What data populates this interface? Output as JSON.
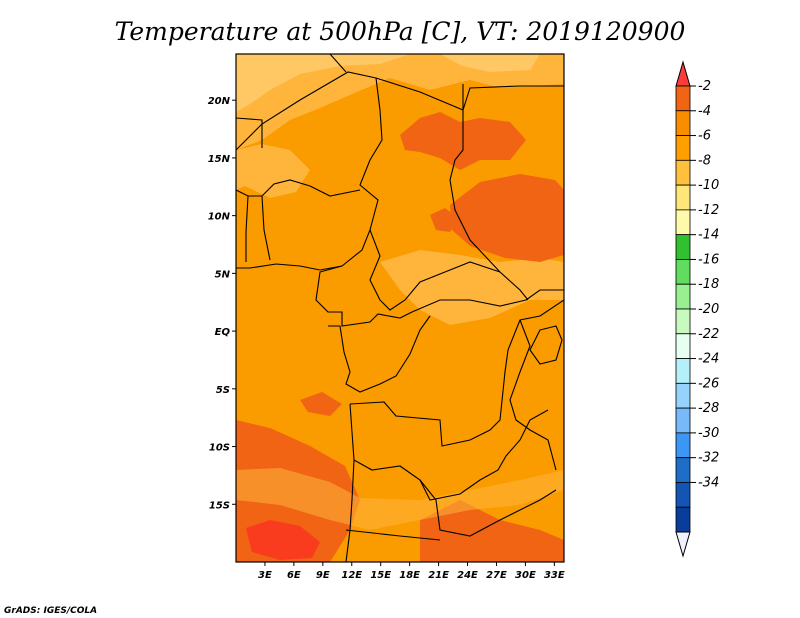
{
  "chart_data": {
    "type": "heatmap",
    "title": "Temperature at 500hPa [C], VT: 2019120900",
    "variable": "Temperature",
    "level": "500hPa",
    "units": "C",
    "valid_time": "2019120900",
    "x_ticks": [
      "3E",
      "6E",
      "9E",
      "12E",
      "15E",
      "18E",
      "21E",
      "24E",
      "27E",
      "30E",
      "33E"
    ],
    "y_ticks": [
      "20N",
      "15N",
      "10N",
      "5N",
      "EQ",
      "5S",
      "10S",
      "15S"
    ],
    "lon_range": [
      0,
      34
    ],
    "lat_range": [
      -20,
      24
    ],
    "colorbar": {
      "labels": [
        "-2",
        "-4",
        "-6",
        "-8",
        "-10",
        "-12",
        "-14",
        "-16",
        "-18",
        "-20",
        "-22",
        "-24",
        "-26",
        "-28",
        "-30",
        "-32",
        "-34"
      ],
      "colors": [
        "#fa3c3c",
        "#f06414",
        "#fa8c00",
        "#ffa000",
        "#ffc03c",
        "#ffe678",
        "#fffaaa",
        "#30c030",
        "#60dc60",
        "#98f090",
        "#c8fac0",
        "#e6fff0",
        "#b4f0fa",
        "#96d2fa",
        "#78b9fa",
        "#3c96f5",
        "#1e6ec8",
        "#1455b4",
        "#0a3c9a",
        "#f0f0ff"
      ]
    },
    "regions": [
      {
        "name": "base",
        "level": "-6 to -4",
        "color": "#fa9b00"
      },
      {
        "name": "north-warm-band",
        "level": "-8 to -6",
        "color": "#ffb43c"
      },
      {
        "name": "north-cool-edge",
        "level": "-10 to -8",
        "color": "#ffc864"
      },
      {
        "name": "sudan-warm-core",
        "level": "-4 to -2",
        "color": "#f06414"
      },
      {
        "name": "chad-warm-patch",
        "level": "-4 to -2",
        "color": "#f06414"
      },
      {
        "name": "central-cool-band",
        "level": "-8 to -6",
        "color": "#ffb43c"
      },
      {
        "name": "southwest-warm-band",
        "level": "-4 to -2",
        "color": "#f06414"
      },
      {
        "name": "southwest-hot-core",
        "level": "-2",
        "color": "#fa3c1e"
      }
    ],
    "credit": "GrADS: IGES/COLA"
  }
}
